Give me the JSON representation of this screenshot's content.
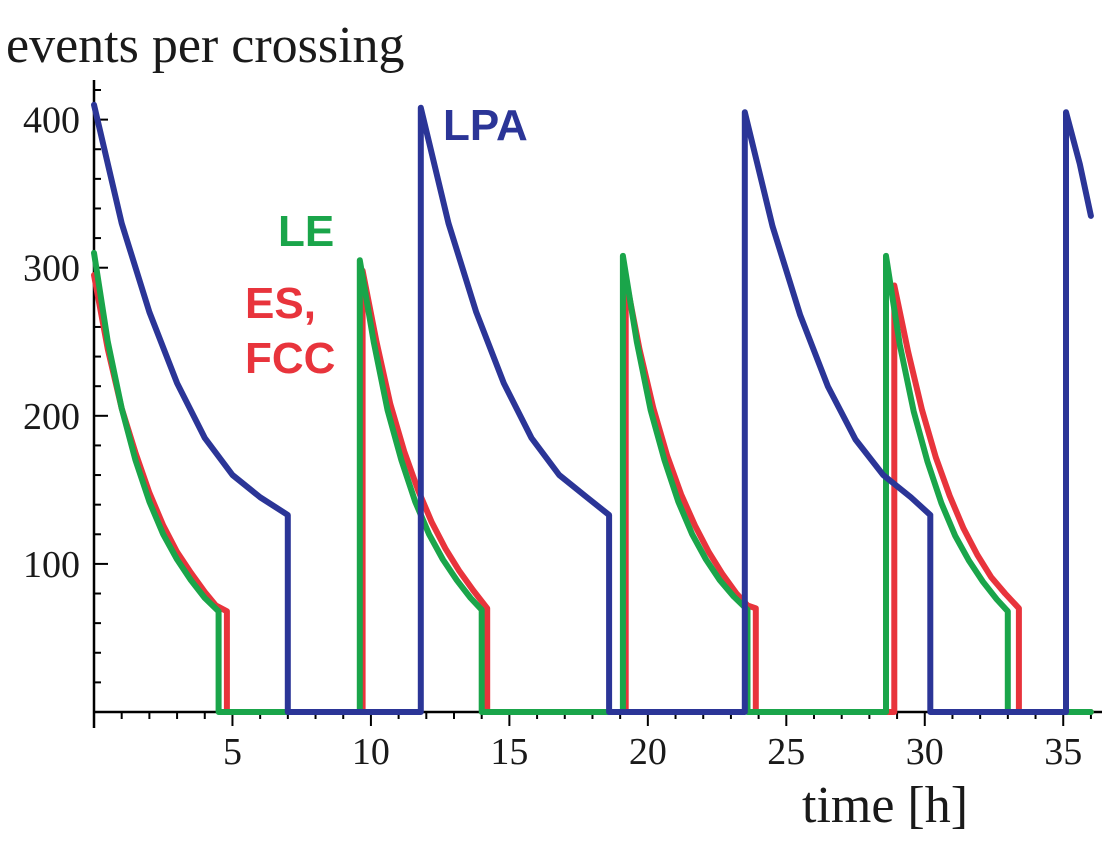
{
  "chart_data": {
    "type": "line",
    "title": "",
    "ylabel": "events per crossing",
    "xlabel": "time [h]",
    "xlim": [
      0,
      36.4
    ],
    "ylim": [
      0,
      420
    ],
    "x_ticks": [
      5,
      10,
      15,
      20,
      25,
      30,
      35
    ],
    "y_ticks": [
      100,
      200,
      300,
      400
    ],
    "x_minor_step": 1,
    "y_minor_step": 20,
    "series": [
      {
        "name": "ES, FCC",
        "label_lines": [
          "ES,",
          "FCC"
        ],
        "color": "#e8343c",
        "points": [
          [
            0.0,
            295
          ],
          [
            0.5,
            245
          ],
          [
            1.0,
            205
          ],
          [
            1.5,
            175
          ],
          [
            2.0,
            148
          ],
          [
            2.5,
            126
          ],
          [
            3.0,
            108
          ],
          [
            3.5,
            94
          ],
          [
            4.0,
            81
          ],
          [
            4.4,
            72
          ],
          [
            4.8,
            68
          ],
          [
            4.8,
            0
          ],
          [
            9.7,
            0
          ],
          [
            9.7,
            298
          ],
          [
            10.2,
            250
          ],
          [
            10.7,
            208
          ],
          [
            11.2,
            176
          ],
          [
            11.7,
            150
          ],
          [
            12.2,
            128
          ],
          [
            12.7,
            110
          ],
          [
            13.2,
            95
          ],
          [
            13.7,
            82
          ],
          [
            14.2,
            70
          ],
          [
            14.2,
            0
          ],
          [
            19.2,
            0
          ],
          [
            19.2,
            293
          ],
          [
            19.7,
            245
          ],
          [
            20.2,
            205
          ],
          [
            20.7,
            173
          ],
          [
            21.2,
            147
          ],
          [
            21.7,
            126
          ],
          [
            22.2,
            108
          ],
          [
            22.7,
            93
          ],
          [
            23.2,
            80
          ],
          [
            23.6,
            72
          ],
          [
            23.9,
            70
          ],
          [
            23.9,
            0
          ],
          [
            28.9,
            0
          ],
          [
            28.9,
            288
          ],
          [
            29.4,
            243
          ],
          [
            29.9,
            204
          ],
          [
            30.4,
            172
          ],
          [
            30.9,
            146
          ],
          [
            31.4,
            124
          ],
          [
            31.9,
            106
          ],
          [
            32.4,
            91
          ],
          [
            32.9,
            80
          ],
          [
            33.4,
            70
          ],
          [
            33.4,
            0
          ],
          [
            36.0,
            0
          ]
        ]
      },
      {
        "name": "LE",
        "label_lines": [
          "LE"
        ],
        "color": "#1aa54a",
        "points": [
          [
            0.0,
            310
          ],
          [
            0.5,
            250
          ],
          [
            1.0,
            205
          ],
          [
            1.5,
            170
          ],
          [
            2.0,
            142
          ],
          [
            2.5,
            120
          ],
          [
            3.0,
            103
          ],
          [
            3.5,
            89
          ],
          [
            4.0,
            77
          ],
          [
            4.5,
            68
          ],
          [
            4.5,
            0
          ],
          [
            9.6,
            0
          ],
          [
            9.6,
            305
          ],
          [
            10.1,
            250
          ],
          [
            10.6,
            204
          ],
          [
            11.1,
            170
          ],
          [
            11.6,
            142
          ],
          [
            12.1,
            120
          ],
          [
            12.6,
            103
          ],
          [
            13.1,
            89
          ],
          [
            13.6,
            77
          ],
          [
            14.0,
            69
          ],
          [
            14.0,
            0
          ],
          [
            19.1,
            0
          ],
          [
            19.1,
            308
          ],
          [
            19.6,
            250
          ],
          [
            20.1,
            204
          ],
          [
            20.6,
            170
          ],
          [
            21.1,
            142
          ],
          [
            21.6,
            120
          ],
          [
            22.1,
            103
          ],
          [
            22.6,
            89
          ],
          [
            23.1,
            78
          ],
          [
            23.6,
            69
          ],
          [
            23.6,
            0
          ],
          [
            28.6,
            0
          ],
          [
            28.6,
            308
          ],
          [
            29.1,
            248
          ],
          [
            29.6,
            203
          ],
          [
            30.1,
            169
          ],
          [
            30.6,
            141
          ],
          [
            31.1,
            119
          ],
          [
            31.6,
            102
          ],
          [
            32.1,
            88
          ],
          [
            32.6,
            76
          ],
          [
            33.0,
            68
          ],
          [
            33.0,
            0
          ],
          [
            36.0,
            0
          ]
        ]
      },
      {
        "name": "LPA",
        "label_lines": [
          "LPA"
        ],
        "color": "#2b3597",
        "points": [
          [
            0.0,
            410
          ],
          [
            1.0,
            330
          ],
          [
            2.0,
            270
          ],
          [
            3.0,
            222
          ],
          [
            4.0,
            185
          ],
          [
            5.0,
            160
          ],
          [
            6.0,
            145
          ],
          [
            7.0,
            133
          ],
          [
            7.0,
            0
          ],
          [
            11.8,
            0
          ],
          [
            11.8,
            408
          ],
          [
            12.8,
            330
          ],
          [
            13.8,
            270
          ],
          [
            14.8,
            222
          ],
          [
            15.8,
            185
          ],
          [
            16.8,
            160
          ],
          [
            17.8,
            145
          ],
          [
            18.6,
            133
          ],
          [
            18.6,
            0
          ],
          [
            23.5,
            0
          ],
          [
            23.5,
            405
          ],
          [
            24.5,
            328
          ],
          [
            25.5,
            268
          ],
          [
            26.5,
            220
          ],
          [
            27.5,
            184
          ],
          [
            28.5,
            160
          ],
          [
            29.5,
            145
          ],
          [
            30.2,
            133
          ],
          [
            30.2,
            0
          ],
          [
            35.1,
            0
          ],
          [
            35.1,
            405
          ],
          [
            35.6,
            370
          ],
          [
            36.0,
            335
          ]
        ]
      }
    ]
  }
}
